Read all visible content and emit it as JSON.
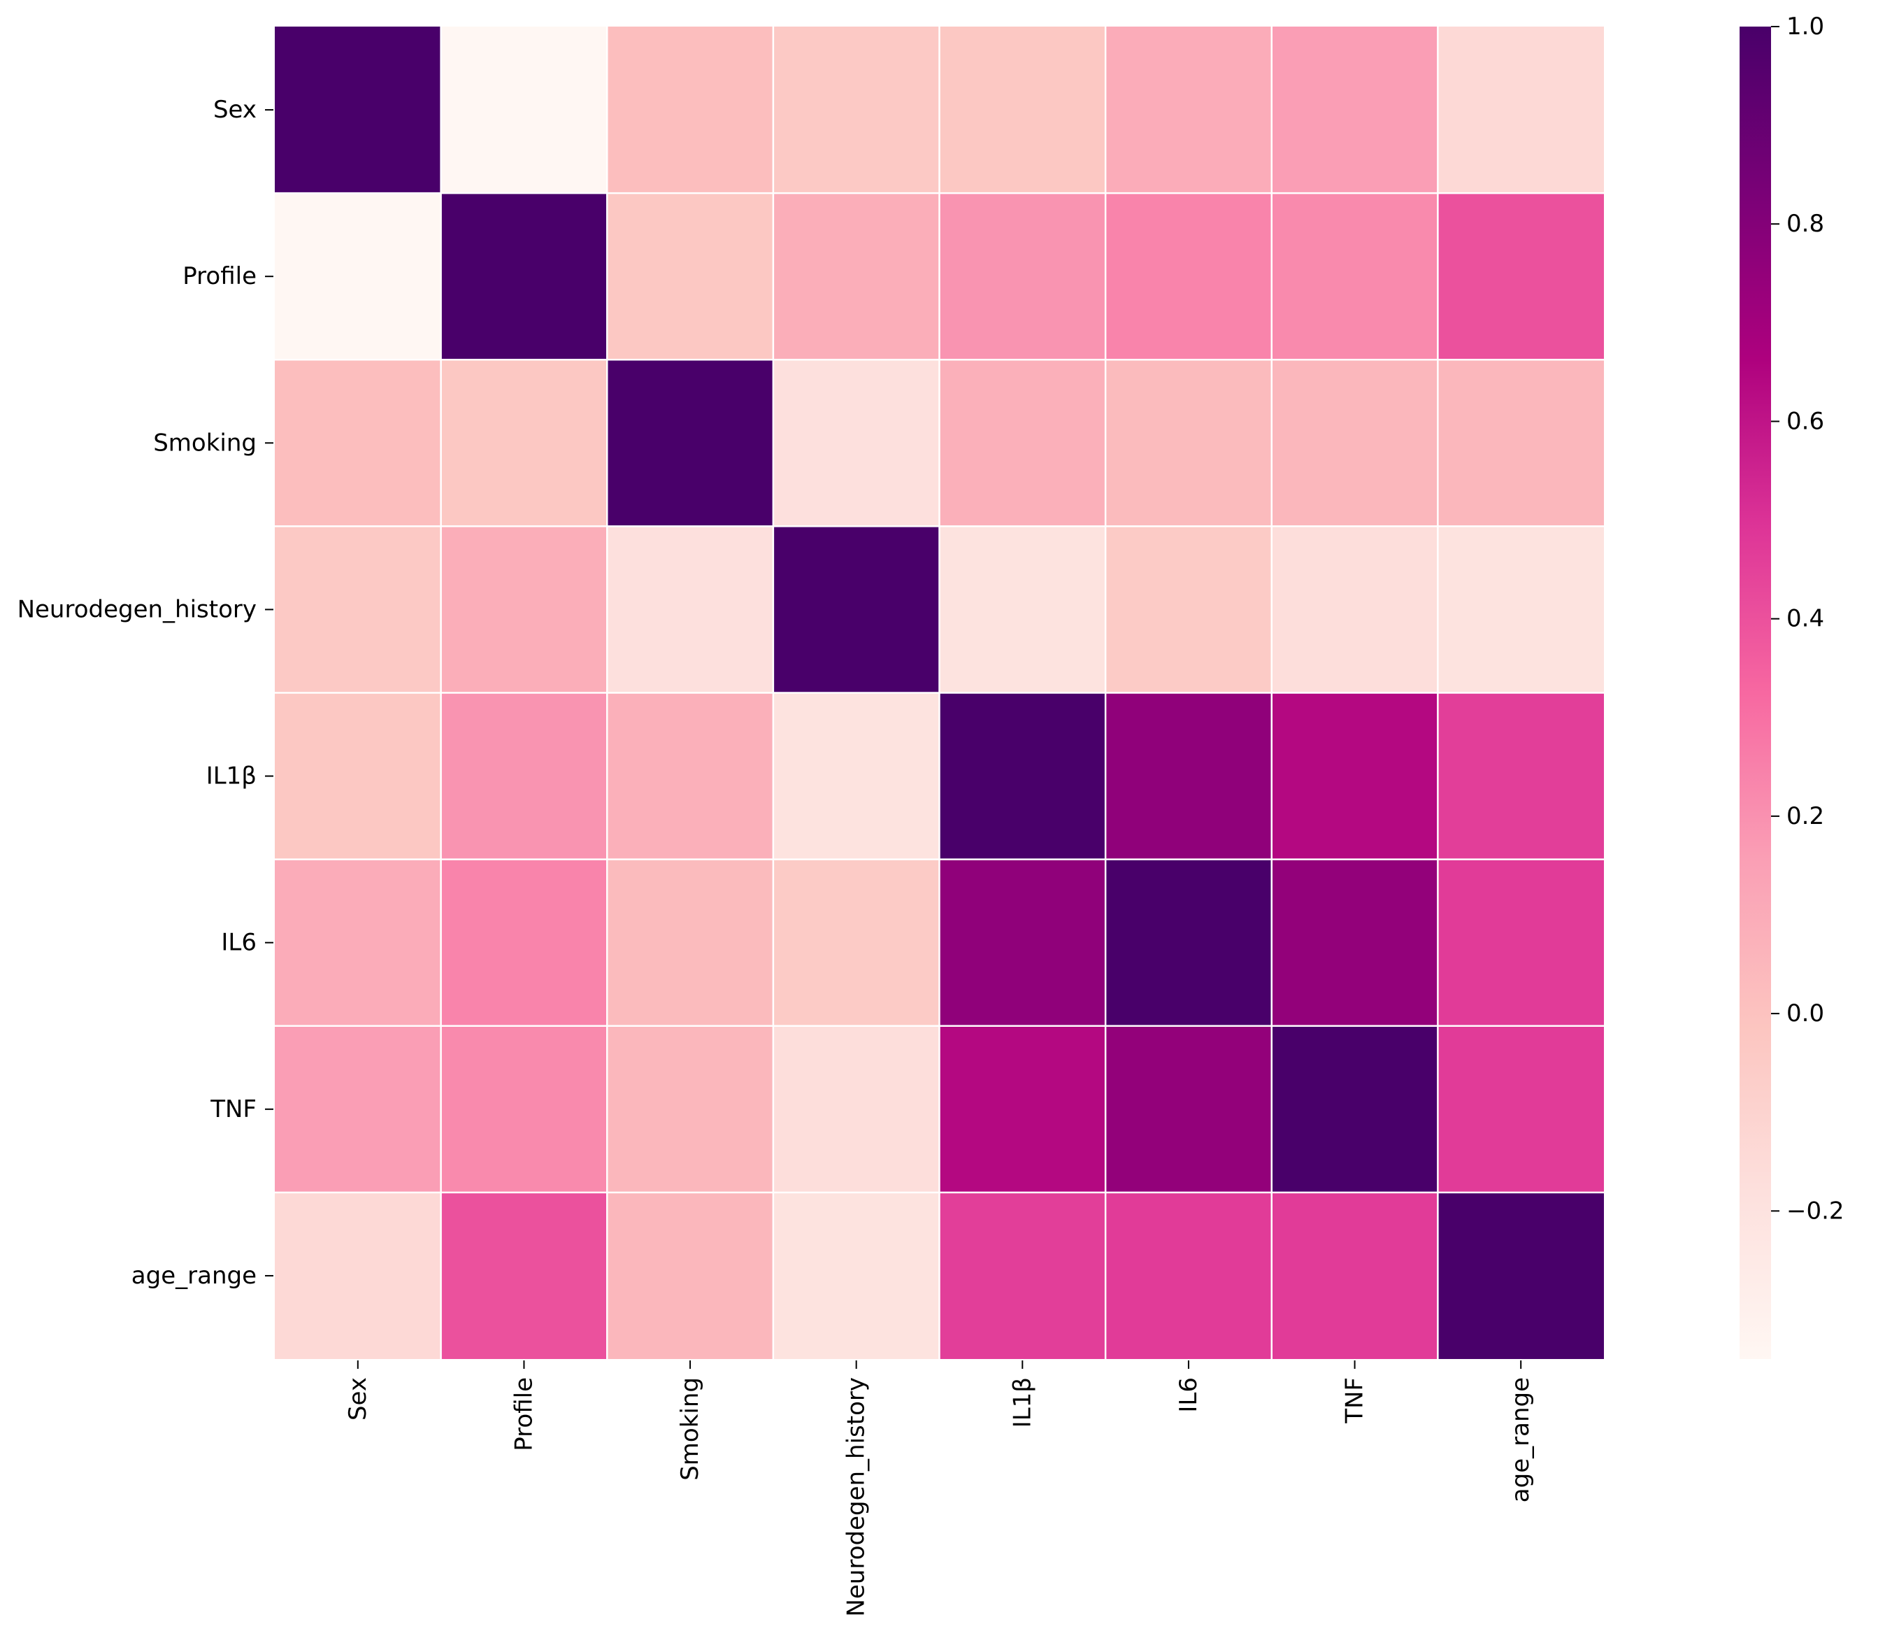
{
  "chart_data": {
    "type": "heatmap",
    "title": "",
    "xlabel": "",
    "ylabel": "",
    "variables": [
      "Sex",
      "Profile",
      "Smoking",
      "Neurodegen_history",
      "IL1β",
      "IL6",
      "TNF",
      "age_range"
    ],
    "values": [
      [
        1.0,
        -0.35,
        0.02,
        -0.04,
        -0.03,
        0.1,
        0.16,
        -0.14
      ],
      [
        -0.35,
        1.0,
        -0.03,
        0.09,
        0.19,
        0.24,
        0.22,
        0.4
      ],
      [
        0.02,
        -0.03,
        1.0,
        -0.18,
        0.08,
        0.03,
        0.05,
        0.05
      ],
      [
        -0.04,
        0.09,
        -0.18,
        1.0,
        -0.2,
        -0.05,
        -0.17,
        -0.2
      ],
      [
        -0.03,
        0.19,
        0.08,
        -0.2,
        1.0,
        0.76,
        0.64,
        0.46
      ],
      [
        0.1,
        0.24,
        0.03,
        -0.05,
        0.76,
        1.0,
        0.75,
        0.47
      ],
      [
        0.16,
        0.22,
        0.05,
        -0.17,
        0.64,
        0.75,
        1.0,
        0.47
      ],
      [
        -0.14,
        0.4,
        0.05,
        -0.2,
        0.46,
        0.47,
        0.47,
        1.0
      ]
    ],
    "colormap": "RdPu",
    "vmin": -0.35,
    "vmax": 1.0,
    "colorbar": {
      "ticks": [
        1.0,
        0.8,
        0.6,
        0.4,
        0.2,
        0.0,
        -0.2
      ],
      "tick_labels": [
        "1.0",
        "0.8",
        "0.6",
        "0.4",
        "0.2",
        "0.0",
        "−0.2"
      ]
    },
    "cell_border_color": "#ffffff",
    "color_stops": [
      "#fff7f3",
      "#fde0dd",
      "#fcc5c0",
      "#fa9fb5",
      "#f768a1",
      "#dd3497",
      "#ae017e",
      "#7a0177",
      "#49006a"
    ]
  }
}
